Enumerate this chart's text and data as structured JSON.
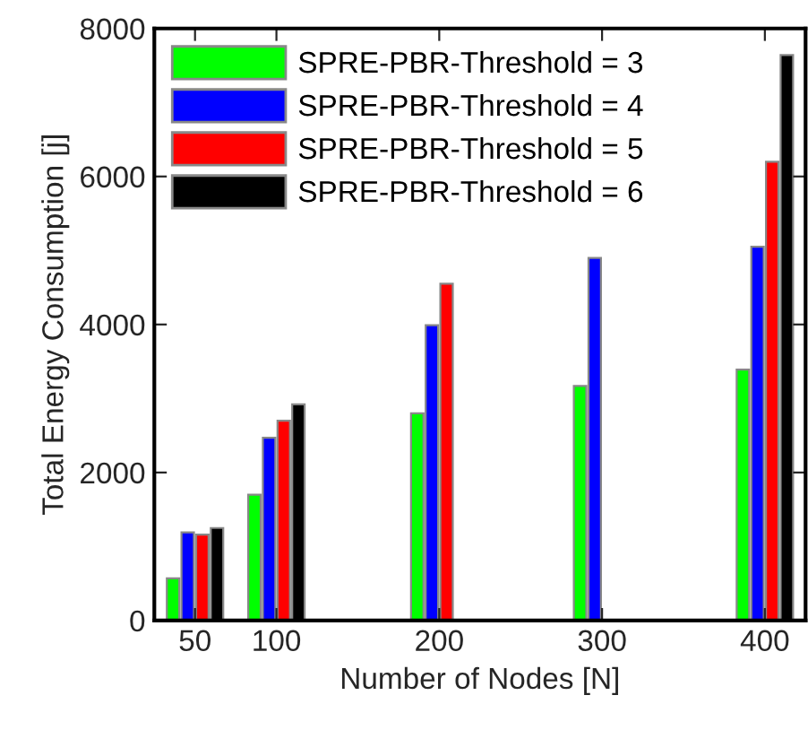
{
  "chart_data": {
    "type": "bar",
    "xlabel": "Number of Nodes [N]",
    "ylabel": "Total Energy Consumption [j]",
    "x": [
      50,
      100,
      200,
      300,
      400
    ],
    "xlim": [
      25,
      425
    ],
    "xticks": [
      50,
      100,
      200,
      300,
      400
    ],
    "ylim": [
      0,
      8000
    ],
    "yticks": [
      0,
      2000,
      4000,
      6000,
      8000
    ],
    "grid": false,
    "legend": "top left",
    "series": [
      {
        "name": "SPRE-PBR-Threshold = 3",
        "color": "#00ff00",
        "values": [
          570,
          1700,
          2800,
          3170,
          3390
        ]
      },
      {
        "name": "SPRE-PBR-Threshold = 4",
        "color": "#0000ff",
        "values": [
          1190,
          2470,
          3990,
          4900,
          5050
        ]
      },
      {
        "name": "SPRE-PBR-Threshold = 5",
        "color": "#ff0000",
        "values": [
          1160,
          2700,
          4550,
          null,
          6200
        ]
      },
      {
        "name": "SPRE-PBR-Threshold = 6",
        "color": "#000000",
        "values": [
          1250,
          2920,
          null,
          null,
          7640
        ]
      }
    ]
  }
}
